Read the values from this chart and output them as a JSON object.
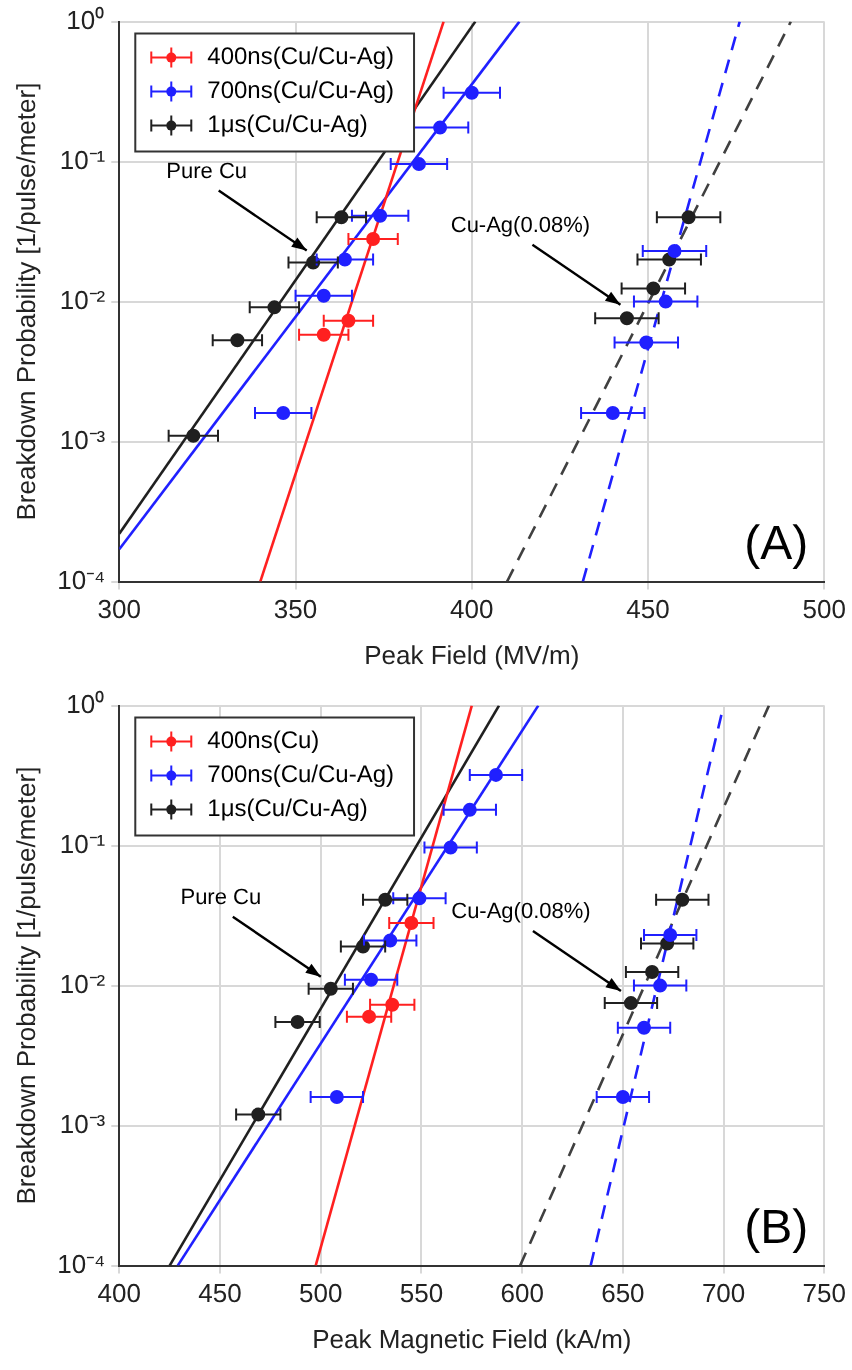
{
  "chart_data": [
    {
      "type": "scatter",
      "xlabel": "Peak Field (MV/m)",
      "ylabel": "Breakdown Probability [1/pulse/meter]",
      "xlim": [
        300,
        500
      ],
      "xticks": [
        300,
        350,
        400,
        450,
        500
      ],
      "ylim": [
        0.0001,
        1
      ],
      "yticks": [
        {
          "value": 0.0001,
          "label": "10⁻⁴"
        },
        {
          "value": 0.001,
          "label": "10⁻³"
        },
        {
          "value": 0.01,
          "label": "10⁻²"
        },
        {
          "value": 0.1,
          "label": "10⁻¹"
        },
        {
          "value": 1,
          "label": "10⁰"
        }
      ],
      "log": "y",
      "grid": true,
      "legend": "top left",
      "marker": "circle",
      "annotations": [
        {
          "text": "Pure Cu",
          "x": 356,
          "y": 0.019
        },
        {
          "text": "Cu-Ag(0.08%)",
          "x": 445,
          "y": 0.0078
        },
        "(A)"
      ],
      "series": [
        {
          "name": "400ns(Cu/Cu-Ag)",
          "color": "#ff2020",
          "x": [
            358,
            365,
            372
          ],
          "values": [
            0.0058,
            0.0073,
            0.028
          ],
          "xerrors": [
            7,
            7,
            7
          ]
        },
        {
          "name": "700ns(Cu/Cu-Ag)",
          "color": "#2020ff",
          "x": [
            400,
            391,
            385,
            374,
            364,
            358,
            346.5,
            457.5,
            455,
            449.5,
            440
          ],
          "values": [
            0.31,
            0.175,
            0.096,
            0.041,
            0.02,
            0.011,
            0.0016,
            0.023,
            0.01,
            0.0051,
            0.0016
          ],
          "xerrors": [
            8,
            8,
            8,
            8,
            8,
            8,
            8,
            9,
            9,
            9,
            9
          ]
        },
        {
          "name": "1μs(Cu/Cu-Ag)",
          "color": "#202020",
          "x": [
            363,
            355,
            344,
            333.5,
            321,
            461.5,
            456,
            451.5,
            444
          ],
          "values": [
            0.04,
            0.019,
            0.0091,
            0.0053,
            0.0011,
            0.04,
            0.02,
            0.0124,
            0.0076
          ],
          "xerrors": [
            7,
            7,
            7,
            7,
            7,
            9,
            9,
            9,
            9
          ]
        },
        {
          "type": "line",
          "color": "#ff2020",
          "x": [
            340,
            392
          ],
          "values": [
            0.0001,
            1
          ],
          "line_style": "solid",
          "marker": "none"
        },
        {
          "type": "line",
          "color": "#2020ff",
          "x": [
            300,
            413.5
          ],
          "values": [
            0.00017,
            1
          ],
          "line_style": "solid",
          "marker": "none"
        },
        {
          "type": "line",
          "color": "#202020",
          "x": [
            300,
            401
          ],
          "values": [
            0.00022,
            1
          ],
          "line_style": "solid",
          "marker": "none"
        },
        {
          "type": "line",
          "color": "#2020ff",
          "x": [
            431.5,
            476
          ],
          "values": [
            0.0001,
            1
          ],
          "line_style": "dashed",
          "marker": "none"
        },
        {
          "type": "line",
          "color": "#404040",
          "x": [
            410,
            490.5
          ],
          "values": [
            0.0001,
            1
          ],
          "line_style": "dashed",
          "marker": "none"
        }
      ]
    },
    {
      "type": "scatter",
      "xlabel": "Peak Magnetic Field (kA/m)",
      "ylabel": "Breakdown Probability [1/pulse/meter]",
      "xlim": [
        400,
        750
      ],
      "xticks": [
        400,
        450,
        500,
        550,
        600,
        650,
        700,
        750
      ],
      "ylim": [
        0.0001,
        1
      ],
      "yticks": [
        {
          "value": 0.0001,
          "label": "10⁻⁴"
        },
        {
          "value": 0.001,
          "label": "10⁻³"
        },
        {
          "value": 0.01,
          "label": "10⁻²"
        },
        {
          "value": 0.1,
          "label": "10⁻¹"
        },
        {
          "value": 1,
          "label": "10⁰"
        }
      ],
      "log": "y",
      "grid": true,
      "legend": "top left",
      "marker": "circle",
      "annotations": [
        {
          "text": "Pure Cu",
          "x": 505,
          "y": 0.0095
        },
        {
          "text": "Cu-Ag(0.08%)",
          "x": 654,
          "y": 0.0075
        },
        "(B)"
      ],
      "series": [
        {
          "name": "400ns(Cu)",
          "color": "#ff2020",
          "x": [
            524,
            535.5,
            545
          ],
          "values": [
            0.006,
            0.0073,
            0.028
          ],
          "xerrors": [
            11,
            11,
            11
          ]
        },
        {
          "name": "700ns(Cu/Cu-Ag)",
          "color": "#2020ff",
          "x": [
            587,
            574,
            564.5,
            549,
            534.5,
            525,
            508,
            673.5,
            668.5,
            660.5,
            650
          ],
          "values": [
            0.32,
            0.18,
            0.097,
            0.042,
            0.021,
            0.011,
            0.0016,
            0.023,
            0.01,
            0.005,
            0.0016
          ],
          "xerrors": [
            13,
            13,
            13,
            13,
            13,
            13,
            13,
            13,
            13,
            13,
            13
          ]
        },
        {
          "name": "1μs(Cu/Cu-Ag)",
          "color": "#202020",
          "x": [
            532,
            521,
            505,
            488.5,
            469,
            679.5,
            672,
            664.5,
            654
          ],
          "values": [
            0.041,
            0.019,
            0.0095,
            0.0055,
            0.0012,
            0.041,
            0.02,
            0.0125,
            0.0075
          ],
          "xerrors": [
            11,
            11,
            11,
            11,
            11,
            13,
            13,
            13,
            13
          ]
        },
        {
          "type": "line",
          "color": "#ff2020",
          "x": [
            497.5,
            575
          ],
          "values": [
            0.0001,
            1
          ],
          "line_style": "solid",
          "marker": "none"
        },
        {
          "type": "line",
          "color": "#2020ff",
          "x": [
            429,
            608
          ],
          "values": [
            0.0001,
            1
          ],
          "line_style": "solid",
          "marker": "none"
        },
        {
          "type": "line",
          "color": "#202020",
          "x": [
            425,
            588.5
          ],
          "values": [
            0.0001,
            1
          ],
          "line_style": "solid",
          "marker": "none"
        },
        {
          "type": "line",
          "color": "#2020ff",
          "x": [
            634,
            700
          ],
          "values": [
            0.0001,
            1
          ],
          "line_style": "dashed",
          "marker": "none"
        },
        {
          "type": "line",
          "color": "#404040",
          "x": [
            599,
            722.5
          ],
          "values": [
            0.0001,
            1
          ],
          "line_style": "dashed",
          "marker": "none"
        }
      ]
    }
  ]
}
